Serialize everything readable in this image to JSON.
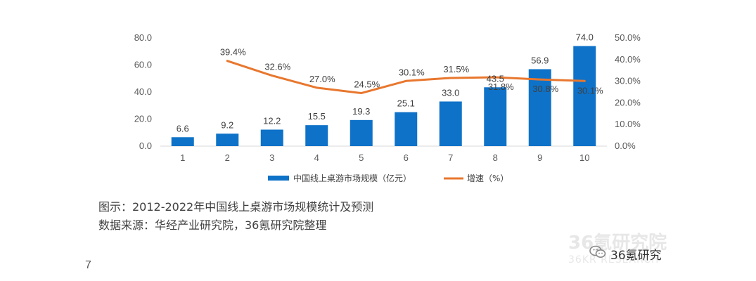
{
  "chart_data": {
    "type": "bar",
    "categories": [
      "1",
      "2",
      "3",
      "4",
      "5",
      "6",
      "7",
      "8",
      "9",
      "10"
    ],
    "series": [
      {
        "name": "中国线上桌游市场规模（亿元）",
        "type": "bar",
        "axis": "left",
        "color": "#0E72C8",
        "values": [
          6.6,
          9.2,
          12.2,
          15.5,
          19.3,
          25.1,
          33.0,
          43.5,
          56.9,
          74.0
        ],
        "labels": [
          "6.6",
          "9.2",
          "12.2",
          "15.5",
          "19.3",
          "25.1",
          "33.0",
          "43.5",
          "56.9",
          "74.0"
        ]
      },
      {
        "name": "增速（%）",
        "type": "line",
        "axis": "right",
        "color": "#E8772E",
        "values": [
          null,
          39.4,
          32.6,
          27.0,
          24.5,
          30.1,
          31.5,
          31.8,
          30.8,
          30.1
        ],
        "labels": [
          null,
          "39.4%",
          "32.6%",
          "27.0%",
          "24.5%",
          "30.1%",
          "31.5%",
          "31.8%",
          "30.8%",
          "30.1%"
        ]
      }
    ],
    "y_left": {
      "min": 0,
      "max": 80,
      "ticks": [
        "0.0",
        "20.0",
        "40.0",
        "60.0",
        "80.0"
      ]
    },
    "y_right": {
      "min": 0,
      "max": 50,
      "ticks": [
        "0.0%",
        "10.0%",
        "20.0%",
        "30.0%",
        "40.0%",
        "50.0%"
      ]
    },
    "grid": false,
    "legend_position": "bottom"
  },
  "caption": {
    "line1": "图示：2012-2022年中国线上桌游市场规模统计及预测",
    "line2": "数据来源：华经产业研究院，36氪研究院整理"
  },
  "page_number": "7",
  "watermark": {
    "cn": "36氪研究院",
    "en": "36KR RESEARCH"
  },
  "badge": {
    "icon": "wechat-icon",
    "text": "36氪研究"
  }
}
